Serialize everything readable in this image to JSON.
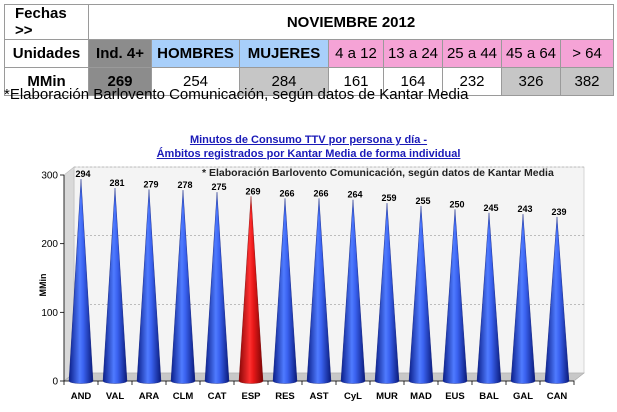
{
  "table": {
    "fechas_label": "Fechas >>",
    "period": "NOVIEMBRE 2012",
    "unidades_label": "Unidades",
    "mmin_label": "MMin",
    "headers": [
      "Ind. 4+",
      "HOMBRES",
      "MUJERES",
      "4 a 12",
      "13 a 24",
      "25 a 44",
      "45 a 64",
      "> 64"
    ],
    "values": [
      "269",
      "254",
      "284",
      "161",
      "164",
      "232",
      "326",
      "382"
    ],
    "colors": {
      "ind": "#8c8c8c",
      "gender": "#a8cffa",
      "age": "#f5a3d6",
      "highlight": "#c6c6c6"
    }
  },
  "note": "*Elaboración Barlovento Comunicación, según datos de Kantar Media",
  "chart_data": {
    "type": "bar",
    "title": "Minutos de Consumo TTV por persona y día -",
    "subtitle": "Ámbitos registrados por Kantar Media de forma individual",
    "annotation": "* Elaboración Barlovento Comunicación, según datos de Kantar Media",
    "ylabel": "MMin",
    "xlabel": "",
    "ylim": [
      0,
      300
    ],
    "yticks": [
      0,
      100,
      200,
      300
    ],
    "categories": [
      "AND",
      "VAL",
      "ARA",
      "CLM",
      "CAT",
      "ESP",
      "RES",
      "AST",
      "CyL",
      "MUR",
      "MAD",
      "EUS",
      "BAL",
      "GAL",
      "CAN"
    ],
    "values": [
      294,
      281,
      279,
      278,
      275,
      269,
      266,
      266,
      264,
      259,
      255,
      250,
      245,
      243,
      239
    ],
    "highlight_category": "ESP",
    "colors": {
      "bar": "#2f55e0",
      "highlight": "#e01010"
    }
  }
}
